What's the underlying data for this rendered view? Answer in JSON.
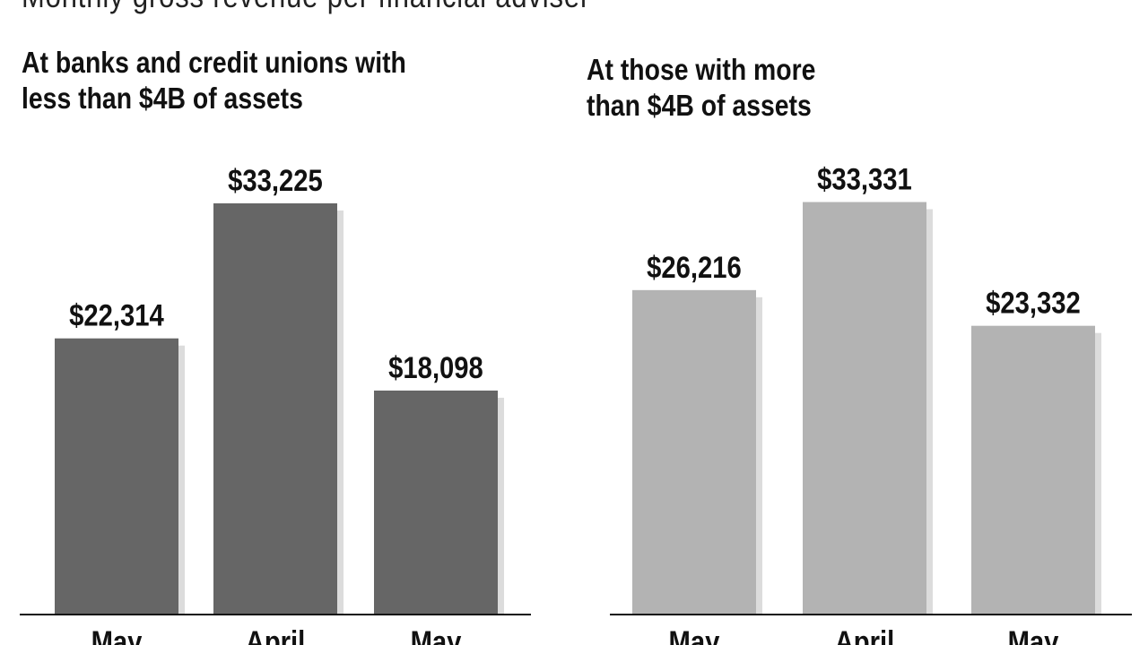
{
  "title": "Monthly gross revenue per financial adviser",
  "colors": {
    "left_bar": "#666666",
    "right_bar": "#b3b3b3",
    "shadow": "#dcdcdc",
    "axis": "#111111"
  },
  "chart_data": [
    {
      "type": "bar",
      "title_lines": [
        "At banks and credit unions with",
        "less than $4B of assets"
      ],
      "categories": [
        "May",
        "April",
        "May"
      ],
      "values": [
        22314,
        33225,
        18098
      ],
      "value_labels": [
        "$22,314",
        "$33,225",
        "$18,098"
      ],
      "ylim": [
        0,
        40000
      ],
      "grid": false
    },
    {
      "type": "bar",
      "title_lines": [
        "At those with more",
        "than $4B of assets"
      ],
      "categories": [
        "May",
        "April",
        "May"
      ],
      "values": [
        26216,
        33331,
        23332
      ],
      "value_labels": [
        "$26,216",
        "$33,331",
        "$23,332"
      ],
      "ylim": [
        0,
        40000
      ],
      "grid": false
    }
  ]
}
